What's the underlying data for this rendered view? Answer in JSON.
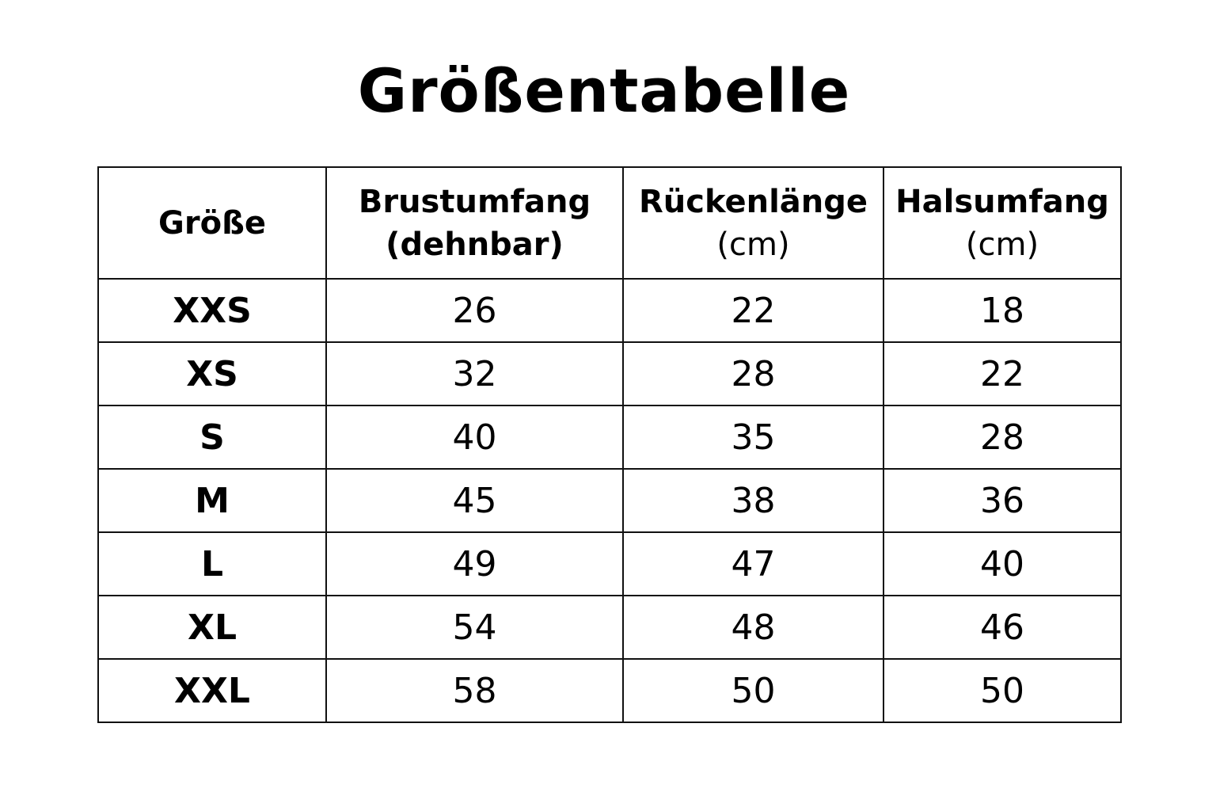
{
  "title": "Größentabelle",
  "table": {
    "headers": [
      {
        "line1": "Größe",
        "line2": ""
      },
      {
        "line1": "Brustumfang",
        "line2": "(dehnbar)"
      },
      {
        "line1": "Rückenlänge",
        "line2": "(cm)"
      },
      {
        "line1": "Halsumfang",
        "line2": "(cm)"
      }
    ],
    "rows": [
      [
        "XXS",
        "26",
        "22",
        "18"
      ],
      [
        "XS",
        "32",
        "28",
        "22"
      ],
      [
        "S",
        "40",
        "35",
        "28"
      ],
      [
        "M",
        "45",
        "38",
        "36"
      ],
      [
        "L",
        "49",
        "47",
        "40"
      ],
      [
        "XL",
        "54",
        "48",
        "46"
      ],
      [
        "XXL",
        "58",
        "50",
        "50"
      ]
    ]
  }
}
